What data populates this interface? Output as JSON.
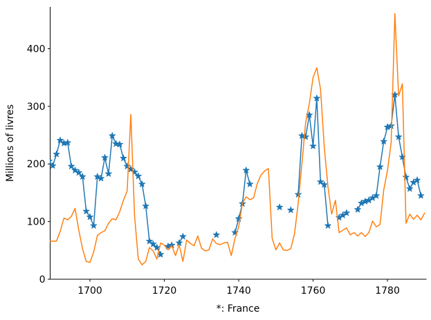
{
  "figure": {
    "ylabel": "Millions of livres",
    "xlabel": "*: France",
    "background": "#ffffff",
    "title": ""
  },
  "axes": {
    "x_ticks": [
      1700,
      1720,
      1740,
      1760,
      1780
    ],
    "y_ticks": [
      0,
      100,
      200,
      300,
      400
    ],
    "xlim": [
      1689.3,
      1790.5
    ],
    "ylim": [
      0,
      472.5
    ],
    "spines": [
      "left",
      "bottom"
    ],
    "tick_color": "#000000"
  },
  "chart_data": {
    "type": "line",
    "title": "",
    "xlabel": "*: France",
    "ylabel": "Millions of livres",
    "grid": false,
    "legend": "none",
    "x": [
      1689,
      1690,
      1691,
      1692,
      1693,
      1694,
      1695,
      1696,
      1697,
      1698,
      1699,
      1700,
      1701,
      1702,
      1703,
      1704,
      1705,
      1706,
      1707,
      1708,
      1709,
      1710,
      1711,
      1712,
      1713,
      1714,
      1715,
      1716,
      1717,
      1718,
      1719,
      1720,
      1721,
      1722,
      1723,
      1724,
      1725,
      1726,
      1727,
      1728,
      1729,
      1730,
      1731,
      1732,
      1733,
      1734,
      1735,
      1736,
      1737,
      1738,
      1739,
      1740,
      1741,
      1742,
      1743,
      1744,
      1745,
      1746,
      1747,
      1748,
      1749,
      1750,
      1751,
      1752,
      1753,
      1754,
      1755,
      1756,
      1757,
      1758,
      1759,
      1760,
      1761,
      1762,
      1763,
      1764,
      1765,
      1766,
      1767,
      1768,
      1769,
      1770,
      1771,
      1772,
      1773,
      1774,
      1775,
      1776,
      1777,
      1778,
      1779,
      1780,
      1781,
      1782,
      1783,
      1784,
      1785,
      1786,
      1787,
      1788,
      1789,
      1790
    ],
    "series": [
      {
        "name": "France",
        "marker": "star",
        "color": "#1f77b4",
        "values": [
          205,
          197,
          217,
          241,
          236,
          237,
          196,
          189,
          185,
          178,
          118,
          108,
          93,
          178,
          175,
          211,
          183,
          249,
          235,
          234,
          210,
          196,
          191,
          186,
          179,
          165,
          127,
          66,
          61,
          55,
          43,
          null,
          57,
          59,
          null,
          63,
          74,
          null,
          null,
          null,
          null,
          null,
          null,
          null,
          null,
          77,
          null,
          null,
          null,
          null,
          81,
          105,
          131,
          189,
          165,
          null,
          null,
          null,
          null,
          null,
          null,
          null,
          125,
          null,
          null,
          120,
          null,
          147,
          249,
          247,
          285,
          231,
          314,
          169,
          164,
          93,
          null,
          null,
          107,
          111,
          115,
          null,
          null,
          121,
          132,
          135,
          137,
          141,
          145,
          195,
          239,
          264,
          266,
          320,
          247,
          212,
          177,
          157,
          168,
          172,
          145,
          null
        ]
      },
      {
        "name": "",
        "marker": "none",
        "color": "#ff7f0e",
        "values": [
          66,
          66,
          66,
          83,
          106,
          103,
          109,
          123,
          85,
          53,
          31,
          29,
          47,
          76,
          81,
          84,
          97,
          105,
          103,
          117,
          137,
          153,
          286,
          110,
          35,
          25,
          31,
          55,
          49,
          35,
          63,
          59,
          51,
          58,
          41,
          60,
          31,
          68,
          62,
          58,
          75,
          54,
          49,
          51,
          70,
          62,
          60,
          63,
          64,
          41,
          71,
          91,
          132,
          143,
          138,
          141,
          166,
          181,
          188,
          192,
          71,
          51,
          63,
          51,
          50,
          53,
          79,
          131,
          200,
          272,
          305,
          350,
          367,
          330,
          230,
          161,
          113,
          137,
          81,
          85,
          89,
          77,
          81,
          75,
          81,
          74,
          81,
          101,
          91,
          95,
          155,
          189,
          237,
          461,
          318,
          339,
          97,
          113,
          104,
          111,
          103,
          115
        ]
      }
    ]
  }
}
